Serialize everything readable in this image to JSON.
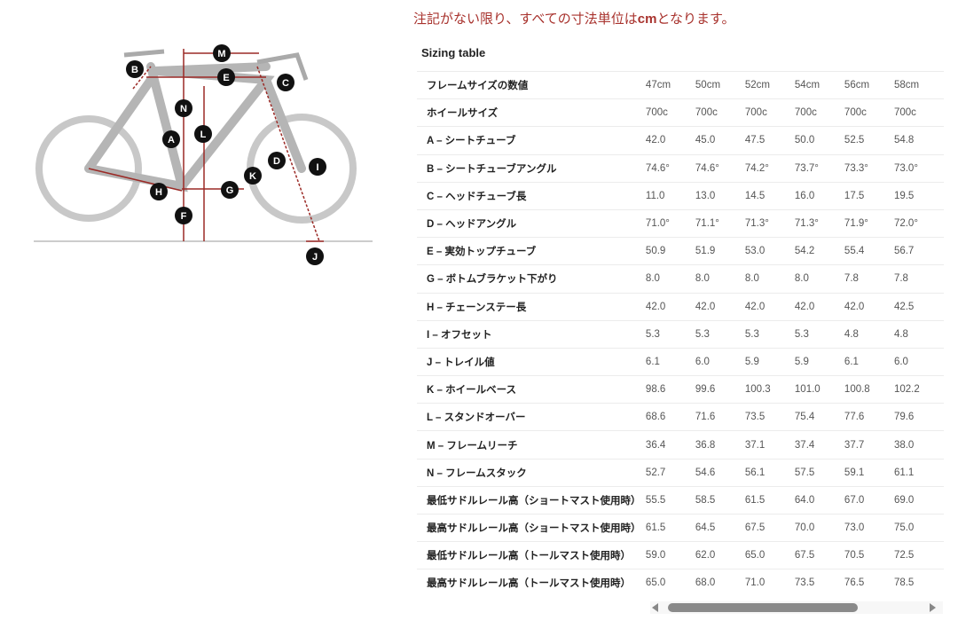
{
  "note": {
    "prefix": "注記がない限り、すべての寸法単位は",
    "unit": "cm",
    "suffix": "となります。"
  },
  "table_title": "Sizing table",
  "diagram_labels": [
    "A",
    "B",
    "C",
    "D",
    "E",
    "F",
    "G",
    "H",
    "I",
    "J",
    "K",
    "L",
    "M",
    "N"
  ],
  "rows": [
    {
      "label": "フレームサイズの数値",
      "values": [
        "47cm",
        "50cm",
        "52cm",
        "54cm",
        "56cm",
        "58cm"
      ]
    },
    {
      "label": "ホイールサイズ",
      "values": [
        "700c",
        "700c",
        "700c",
        "700c",
        "700c",
        "700c"
      ]
    },
    {
      "label": "A – シートチューブ",
      "values": [
        "42.0",
        "45.0",
        "47.5",
        "50.0",
        "52.5",
        "54.8"
      ]
    },
    {
      "label": "B – シートチューブアングル",
      "values": [
        "74.6°",
        "74.6°",
        "74.2°",
        "73.7°",
        "73.3°",
        "73.0°"
      ]
    },
    {
      "label": "C – ヘッドチューブ長",
      "values": [
        "11.0",
        "13.0",
        "14.5",
        "16.0",
        "17.5",
        "19.5"
      ]
    },
    {
      "label": "D – ヘッドアングル",
      "values": [
        "71.0°",
        "71.1°",
        "71.3°",
        "71.3°",
        "71.9°",
        "72.0°"
      ]
    },
    {
      "label": "E – 実効トップチューブ",
      "values": [
        "50.9",
        "51.9",
        "53.0",
        "54.2",
        "55.4",
        "56.7"
      ]
    },
    {
      "label": "G – ボトムブラケット下がり",
      "values": [
        "8.0",
        "8.0",
        "8.0",
        "8.0",
        "7.8",
        "7.8"
      ]
    },
    {
      "label": "H – チェーンステー長",
      "values": [
        "42.0",
        "42.0",
        "42.0",
        "42.0",
        "42.0",
        "42.5"
      ]
    },
    {
      "label": "I – オフセット",
      "values": [
        "5.3",
        "5.3",
        "5.3",
        "5.3",
        "4.8",
        "4.8"
      ]
    },
    {
      "label": "J – トレイル値",
      "values": [
        "6.1",
        "6.0",
        "5.9",
        "5.9",
        "6.1",
        "6.0"
      ]
    },
    {
      "label": "K – ホイールベース",
      "values": [
        "98.6",
        "99.6",
        "100.3",
        "101.0",
        "100.8",
        "102.2"
      ]
    },
    {
      "label": "L – スタンドオーバー",
      "values": [
        "68.6",
        "71.6",
        "73.5",
        "75.4",
        "77.6",
        "79.6"
      ]
    },
    {
      "label": "M – フレームリーチ",
      "values": [
        "36.4",
        "36.8",
        "37.1",
        "37.4",
        "37.7",
        "38.0"
      ]
    },
    {
      "label": "N – フレームスタック",
      "values": [
        "52.7",
        "54.6",
        "56.1",
        "57.5",
        "59.1",
        "61.1"
      ]
    },
    {
      "label": "最低サドルレール高（ショートマスト使用時）",
      "values": [
        "55.5",
        "58.5",
        "61.5",
        "64.0",
        "67.0",
        "69.0"
      ]
    },
    {
      "label": "最高サドルレール高（ショートマスト使用時）",
      "values": [
        "61.5",
        "64.5",
        "67.5",
        "70.0",
        "73.0",
        "75.0"
      ]
    },
    {
      "label": "最低サドルレール高（トールマスト使用時）",
      "values": [
        "59.0",
        "62.0",
        "65.0",
        "67.5",
        "70.5",
        "72.5"
      ]
    },
    {
      "label": "最高サドルレール高（トールマスト使用時）",
      "values": [
        "65.0",
        "68.0",
        "71.0",
        "73.5",
        "76.5",
        "78.5"
      ]
    }
  ],
  "colors": {
    "note": "#a8322d",
    "dimension_lines": "#9b2a26"
  }
}
